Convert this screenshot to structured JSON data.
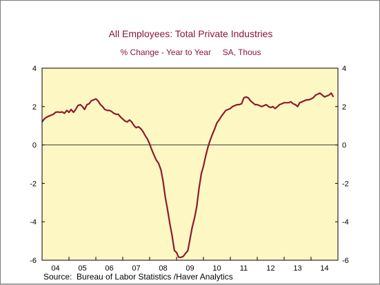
{
  "chart_data": {
    "type": "line",
    "title": "All Employees: Total Private Industries",
    "subtitle": "% Change - Year to Year     SA, Thous",
    "xlabel": "",
    "ylabel": "",
    "x_tick_labels": [
      "04",
      "05",
      "06",
      "07",
      "08",
      "09",
      "10",
      "11",
      "12",
      "13",
      "14"
    ],
    "y_ticks": [
      -6,
      -4,
      -2,
      0,
      2,
      4
    ],
    "ylim": [
      -6,
      4
    ],
    "xlim": [
      2004.0,
      2015.0
    ],
    "grid": false,
    "zero_line": true,
    "line_color": "#8b1a2e",
    "plot_background": "#fdf7c3",
    "series": [
      {
        "x": [
          2004.0,
          2004.08,
          2004.17,
          2004.25,
          2004.33,
          2004.42,
          2004.5,
          2004.58,
          2004.67,
          2004.75,
          2004.83,
          2004.92,
          2005.0,
          2005.08,
          2005.17,
          2005.25,
          2005.33,
          2005.42,
          2005.5,
          2005.58,
          2005.67,
          2005.75,
          2005.83,
          2005.92,
          2006.0,
          2006.08,
          2006.17,
          2006.25,
          2006.33,
          2006.42,
          2006.5,
          2006.58,
          2006.67,
          2006.75,
          2006.83,
          2006.92,
          2007.0,
          2007.08,
          2007.17,
          2007.25,
          2007.33,
          2007.42,
          2007.5,
          2007.58,
          2007.67,
          2007.75,
          2007.83,
          2007.92,
          2008.0,
          2008.08,
          2008.17,
          2008.25,
          2008.33,
          2008.42,
          2008.5,
          2008.58,
          2008.67,
          2008.75,
          2008.83,
          2008.92,
          2009.0,
          2009.08,
          2009.17,
          2009.25,
          2009.33,
          2009.42,
          2009.5,
          2009.58,
          2009.67,
          2009.75,
          2009.83,
          2009.92,
          2010.0,
          2010.08,
          2010.17,
          2010.25,
          2010.33,
          2010.42,
          2010.5,
          2010.58,
          2010.67,
          2010.75,
          2010.83,
          2010.92,
          2011.0,
          2011.08,
          2011.17,
          2011.25,
          2011.33,
          2011.42,
          2011.5,
          2011.58,
          2011.67,
          2011.75,
          2011.83,
          2011.92,
          2012.0,
          2012.08,
          2012.17,
          2012.25,
          2012.33,
          2012.42,
          2012.5,
          2012.58,
          2012.67,
          2012.75,
          2012.83,
          2012.92,
          2013.0,
          2013.08,
          2013.17,
          2013.25,
          2013.33,
          2013.42,
          2013.5,
          2013.58,
          2013.67,
          2013.75,
          2013.83,
          2013.92,
          2014.0,
          2014.08,
          2014.17,
          2014.25,
          2014.33,
          2014.42,
          2014.5,
          2014.58,
          2014.67,
          2014.75,
          2014.83
        ],
        "y": [
          1.2,
          1.35,
          1.45,
          1.5,
          1.55,
          1.6,
          1.7,
          1.72,
          1.7,
          1.72,
          1.65,
          1.8,
          1.7,
          1.85,
          1.7,
          1.85,
          2.05,
          2.1,
          2.0,
          1.85,
          2.1,
          2.15,
          2.3,
          2.35,
          2.4,
          2.3,
          2.1,
          2.0,
          1.85,
          1.8,
          1.8,
          1.75,
          1.65,
          1.6,
          1.6,
          1.45,
          1.35,
          1.25,
          1.2,
          1.3,
          1.2,
          1.0,
          0.9,
          0.95,
          0.85,
          0.7,
          0.5,
          0.3,
          0.05,
          -0.25,
          -0.55,
          -0.8,
          -0.95,
          -1.3,
          -1.9,
          -2.7,
          -3.4,
          -4.1,
          -4.7,
          -5.5,
          -5.6,
          -5.85,
          -5.85,
          -5.8,
          -5.65,
          -5.5,
          -4.9,
          -4.3,
          -3.8,
          -3.2,
          -2.3,
          -1.5,
          -1.1,
          -0.6,
          -0.1,
          0.25,
          0.55,
          0.85,
          1.15,
          1.3,
          1.5,
          1.65,
          1.8,
          1.85,
          1.9,
          2.0,
          2.05,
          2.1,
          2.1,
          2.15,
          2.45,
          2.5,
          2.45,
          2.3,
          2.2,
          2.1,
          2.1,
          2.05,
          2.0,
          2.05,
          2.1,
          2.0,
          1.95,
          2.0,
          1.9,
          2.0,
          2.1,
          2.15,
          2.2,
          2.2,
          2.2,
          2.25,
          2.15,
          2.1,
          2.0,
          2.2,
          2.25,
          2.3,
          2.35,
          2.35,
          2.4,
          2.45,
          2.6,
          2.65,
          2.7,
          2.6,
          2.5,
          2.55,
          2.6,
          2.7,
          2.5
        ]
      }
    ]
  },
  "footer": {
    "source": "Source:  Bureau of Labor Statistics /Haver Analytics"
  }
}
